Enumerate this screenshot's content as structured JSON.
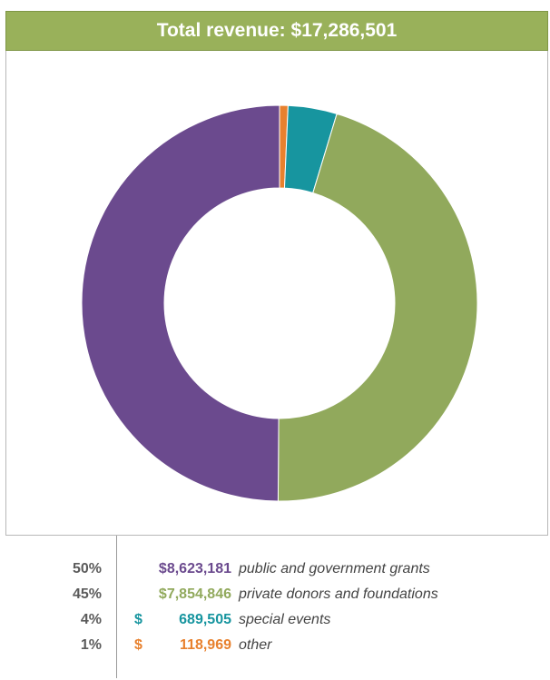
{
  "header": {
    "title": "Total revenue: $17,286,501"
  },
  "chart_data": {
    "type": "pie",
    "title": "Total revenue: $17,286,501",
    "donut": true,
    "start": "top",
    "direction": "clockwise",
    "slices": [
      {
        "label": "other",
        "percent": "1%",
        "amount": "118,969",
        "value": 118969,
        "color": "#e8812e"
      },
      {
        "label": "special events",
        "percent": "4%",
        "amount": "689,505",
        "value": 689505,
        "color": "#17959f"
      },
      {
        "label": "private donors and foundations",
        "percent": "45%",
        "amount": "$7,854,846",
        "value": 7854846,
        "color": "#91a95c"
      },
      {
        "label": "public and government grants",
        "percent": "50%",
        "amount": "$8,623,181",
        "value": 8623181,
        "color": "#6b4a8e"
      }
    ]
  },
  "legend": {
    "rows": [
      {
        "percent": "50%",
        "dollar": "",
        "amount": "$8,623,181",
        "label": "public and government grants",
        "color": "#6b4a8e"
      },
      {
        "percent": "45%",
        "dollar": "",
        "amount": "$7,854,846",
        "label": "private donors and foundations",
        "color": "#91a95c"
      },
      {
        "percent": "4%",
        "dollar": "$",
        "amount": "689,505",
        "label": "special events",
        "color": "#17959f"
      },
      {
        "percent": "1%",
        "dollar": "$",
        "amount": "118,969",
        "label": "other",
        "color": "#e8812e"
      }
    ]
  }
}
